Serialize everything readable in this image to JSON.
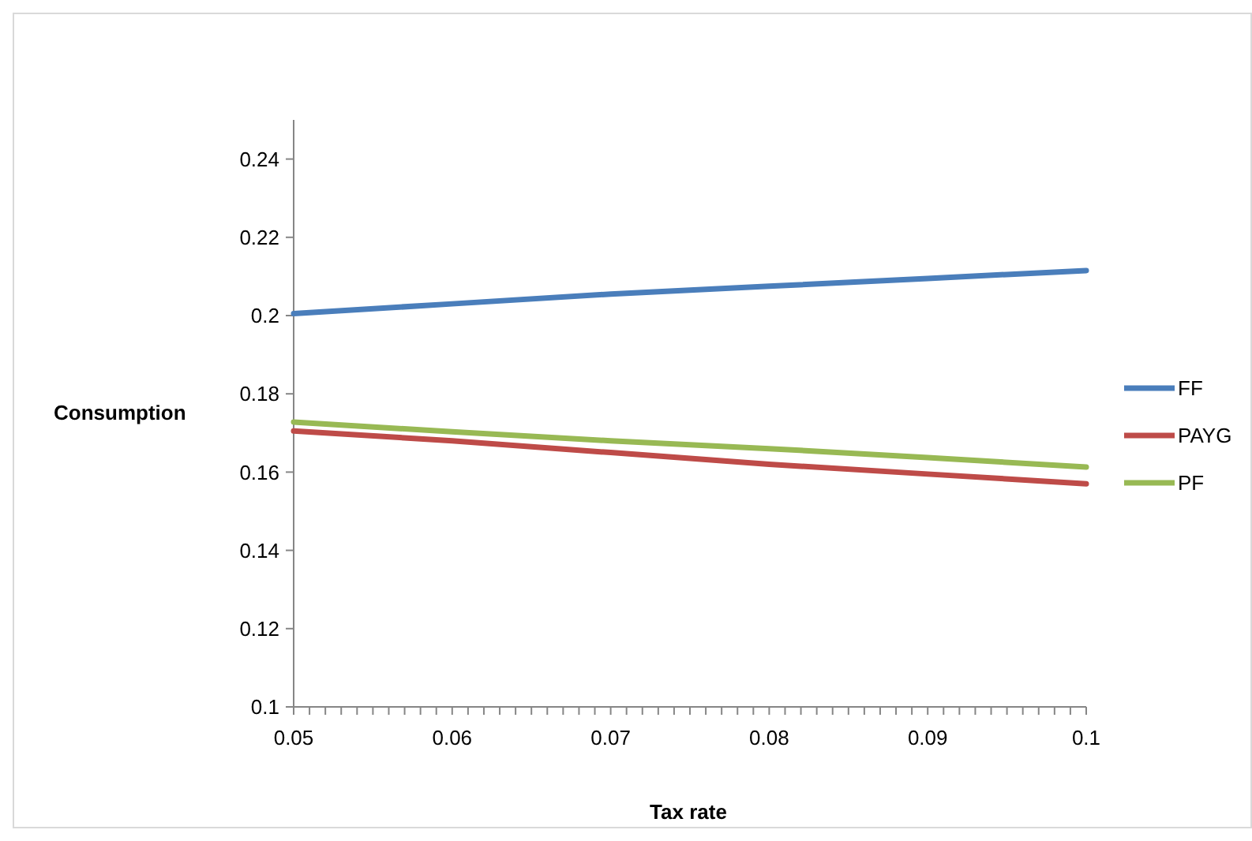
{
  "chart_data": {
    "type": "line",
    "xlabel": "Tax rate",
    "ylabel": "Consumption",
    "x": [
      0.05,
      0.06,
      0.07,
      0.08,
      0.09,
      0.1
    ],
    "series": [
      {
        "name": "FF",
        "color": "#4a7ebb",
        "values": [
          0.2005,
          0.203,
          0.2055,
          0.2075,
          0.2095,
          0.2115
        ]
      },
      {
        "name": "PAYG",
        "color": "#be4b48",
        "values": [
          0.1705,
          0.168,
          0.165,
          0.162,
          0.1595,
          0.157
        ]
      },
      {
        "name": "PF",
        "color": "#98b954",
        "values": [
          0.1728,
          0.1703,
          0.168,
          0.166,
          0.1637,
          0.1613
        ]
      }
    ],
    "xlim": [
      0.05,
      0.1
    ],
    "xticks": [
      0.05,
      {
        "value": 0.051,
        "label": null
      },
      {
        "value": 0.052,
        "label": null
      },
      {
        "value": 0.053,
        "label": null
      },
      {
        "value": 0.054,
        "label": null
      },
      {
        "value": 0.055,
        "label": null
      },
      {
        "value": 0.056,
        "label": null
      },
      {
        "value": 0.057,
        "label": null
      },
      {
        "value": 0.058,
        "label": null
      },
      {
        "value": 0.059,
        "label": null
      },
      0.06,
      {
        "value": 0.061,
        "label": null
      },
      {
        "value": 0.062,
        "label": null
      },
      {
        "value": 0.063,
        "label": null
      },
      {
        "value": 0.064,
        "label": null
      },
      {
        "value": 0.065,
        "label": null
      },
      {
        "value": 0.066,
        "label": null
      },
      {
        "value": 0.067,
        "label": null
      },
      {
        "value": 0.068,
        "label": null
      },
      {
        "value": 0.069,
        "label": null
      },
      0.07,
      {
        "value": 0.071,
        "label": null
      },
      {
        "value": 0.072,
        "label": null
      },
      {
        "value": 0.073,
        "label": null
      },
      {
        "value": 0.074,
        "label": null
      },
      {
        "value": 0.075,
        "label": null
      },
      {
        "value": 0.076,
        "label": null
      },
      {
        "value": 0.077,
        "label": null
      },
      {
        "value": 0.078,
        "label": null
      },
      {
        "value": 0.079,
        "label": null
      },
      0.08,
      {
        "value": 0.081,
        "label": null
      },
      {
        "value": 0.082,
        "label": null
      },
      {
        "value": 0.083,
        "label": null
      },
      {
        "value": 0.084,
        "label": null
      },
      {
        "value": 0.085,
        "label": null
      },
      {
        "value": 0.086,
        "label": null
      },
      {
        "value": 0.087,
        "label": null
      },
      {
        "value": 0.088,
        "label": null
      },
      {
        "value": 0.089,
        "label": null
      },
      0.09,
      {
        "value": 0.091,
        "label": null
      },
      {
        "value": 0.092,
        "label": null
      },
      {
        "value": 0.093,
        "label": null
      },
      {
        "value": 0.094,
        "label": null
      },
      {
        "value": 0.095,
        "label": null
      },
      {
        "value": 0.096,
        "label": null
      },
      {
        "value": 0.097,
        "label": null
      },
      {
        "value": 0.098,
        "label": null
      },
      {
        "value": 0.099,
        "label": null
      },
      0.1
    ],
    "ylim": [
      0.1,
      0.25
    ],
    "yticks": [
      0.1,
      0.12,
      0.14,
      0.16,
      0.18,
      0.2,
      0.22,
      0.24
    ],
    "legend": "right",
    "grid": false,
    "marker": "none",
    "line_style": "solid"
  }
}
